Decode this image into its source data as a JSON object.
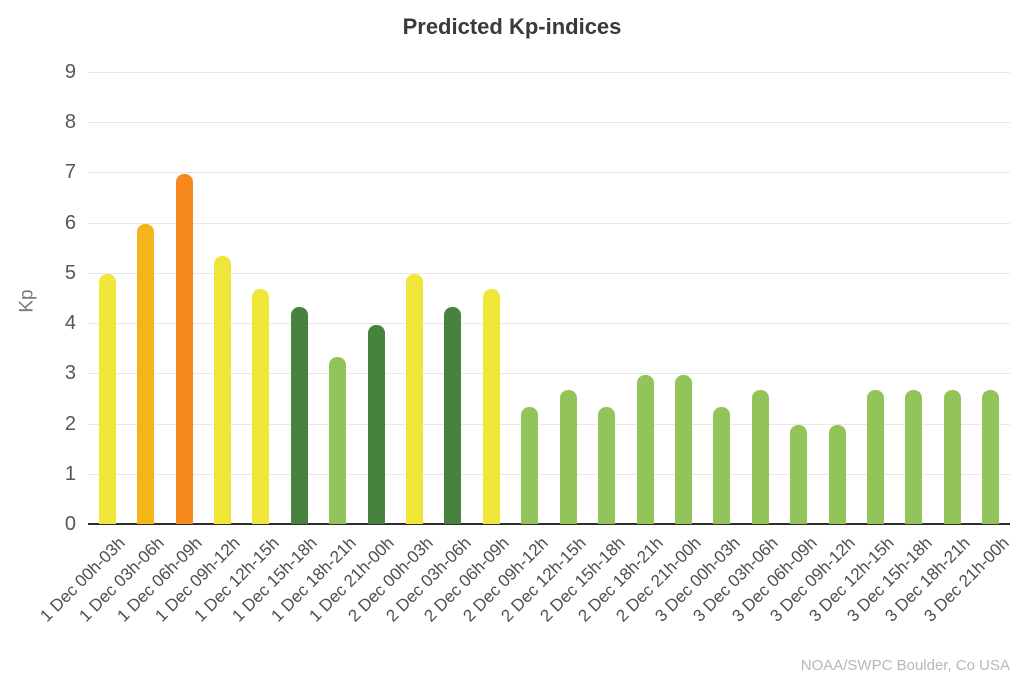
{
  "chart_data": {
    "type": "bar",
    "title": "Predicted Kp-indices",
    "ylabel": "Kp",
    "xlabel": "",
    "ylim": [
      0,
      9
    ],
    "ytick_step": 1,
    "grid": true,
    "legend": false,
    "source_credit": "NOAA/SWPC Boulder, Co USA",
    "categories": [
      "1 Dec 00h-03h",
      "1 Dec 03h-06h",
      "1 Dec 06h-09h",
      "1 Dec 09h-12h",
      "1 Dec 12h-15h",
      "1 Dec 15h-18h",
      "1 Dec 18h-21h",
      "1 Dec 21h-00h",
      "2 Dec 00h-03h",
      "2 Dec 03h-06h",
      "2 Dec 06h-09h",
      "2 Dec 09h-12h",
      "2 Dec 12h-15h",
      "2 Dec 15h-18h",
      "2 Dec 18h-21h",
      "2 Dec 21h-00h",
      "3 Dec 00h-03h",
      "3 Dec 03h-06h",
      "3 Dec 06h-09h",
      "3 Dec 09h-12h",
      "3 Dec 12h-15h",
      "3 Dec 15h-18h",
      "3 Dec 18h-21h",
      "3 Dec 21h-00h"
    ],
    "values": [
      4.97,
      5.97,
      6.97,
      5.33,
      4.67,
      4.33,
      3.33,
      3.97,
      4.97,
      4.33,
      4.67,
      2.33,
      2.67,
      2.33,
      2.97,
      2.97,
      2.33,
      2.67,
      1.97,
      1.97,
      2.67,
      2.67,
      2.67,
      2.67
    ],
    "bar_colors": [
      "yellow",
      "amber",
      "orange",
      "yellow",
      "yellow",
      "dark_green",
      "light_green",
      "dark_green",
      "yellow",
      "dark_green",
      "yellow",
      "light_green",
      "light_green",
      "light_green",
      "light_green",
      "light_green",
      "light_green",
      "light_green",
      "light_green",
      "light_green",
      "light_green",
      "light_green",
      "light_green",
      "light_green"
    ],
    "colors": {
      "light_green": "#92c45a",
      "dark_green": "#47823e",
      "yellow": "#f0e63a",
      "amber": "#f4b41a",
      "orange": "#f5891c"
    }
  }
}
